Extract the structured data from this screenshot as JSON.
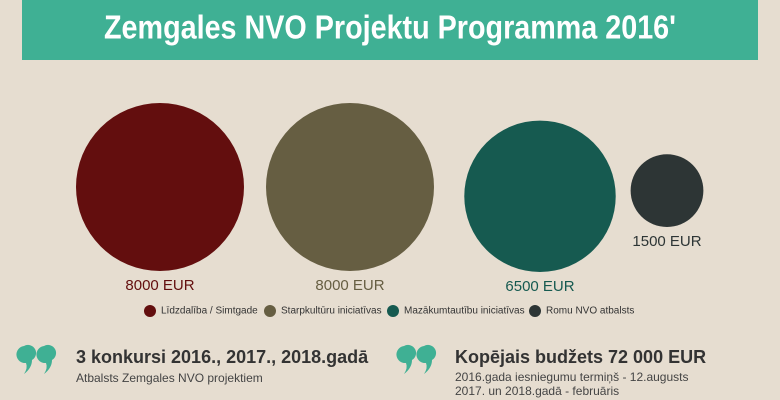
{
  "chart_data": {
    "type": "bubble",
    "title": "Zemgales NVO Projektu Programma 2016'",
    "categories": [
      "Līdzdalība / Simtgade",
      "Starpkultūru iniciatīvas",
      "Mazākumtautību iniciatīvas",
      "Romu NVO atbalsts"
    ],
    "values": [
      8000,
      8000,
      6500,
      1500
    ],
    "value_labels": [
      "8000 EUR",
      "8000 EUR",
      "6500 EUR",
      "1500 EUR"
    ],
    "colors": [
      "#630e0e",
      "#665e42",
      "#165a50",
      "#2d3535"
    ]
  },
  "highlights": [
    {
      "title": "3 konkursi 2016., 2017., 2018.gadā",
      "lines": [
        "Atbalsts Zemgales NVO projektiem"
      ]
    },
    {
      "title": "Kopējais budžets 72 000 EUR",
      "lines": [
        "2016.gada iesniegumu termiņš - 12.augusts",
        "2017. un 2018.gadā - februāris"
      ]
    }
  ]
}
